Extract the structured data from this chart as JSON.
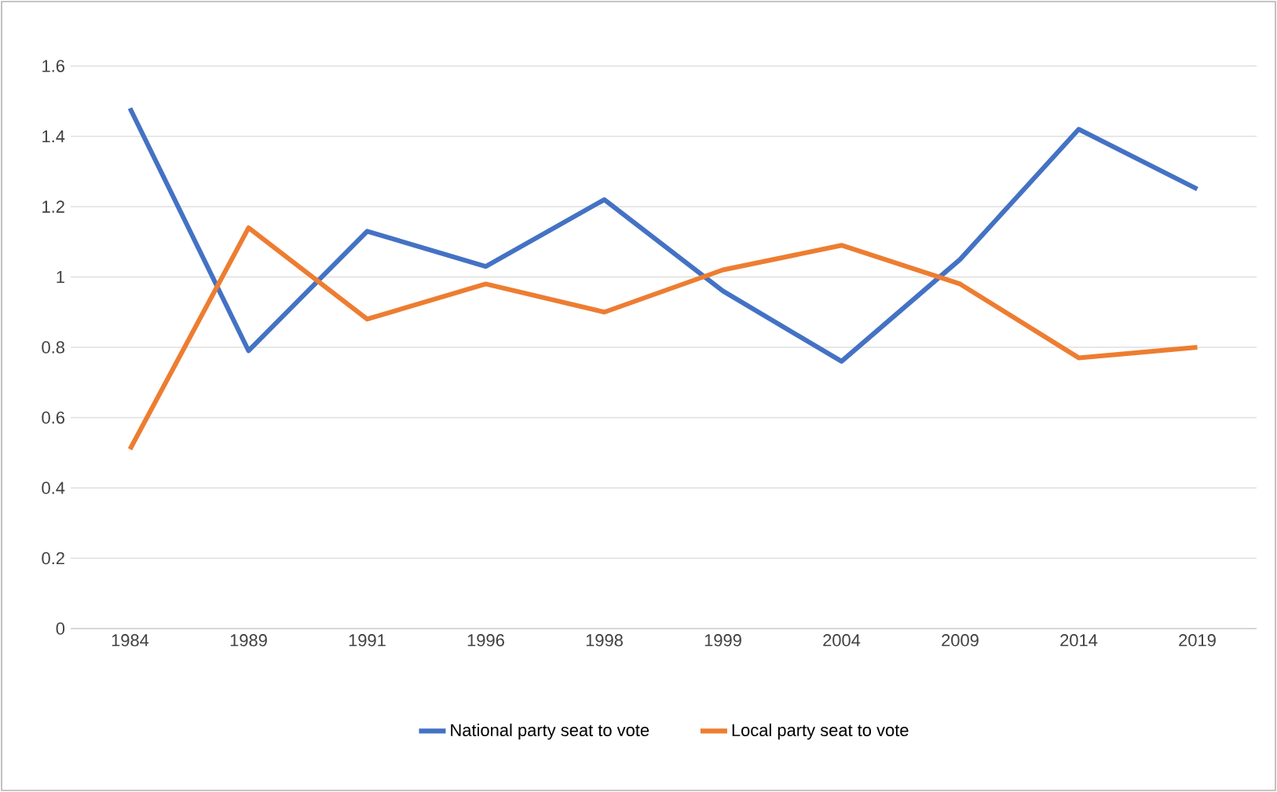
{
  "chart_data": {
    "type": "line",
    "categories": [
      "1984",
      "1989",
      "1991",
      "1996",
      "1998",
      "1999",
      "2004",
      "2009",
      "2014",
      "2019"
    ],
    "series": [
      {
        "name": "National party seat to vote",
        "color": "#4472c4",
        "values": [
          1.48,
          0.79,
          1.13,
          1.03,
          1.22,
          0.96,
          0.76,
          1.05,
          1.42,
          1.25
        ]
      },
      {
        "name": "Local party seat to vote",
        "color": "#ed7d31",
        "values": [
          0.51,
          1.14,
          0.88,
          0.98,
          0.9,
          1.02,
          1.09,
          0.98,
          0.77,
          0.8
        ]
      }
    ],
    "ylim": [
      0,
      1.6
    ],
    "yticks": [
      0,
      0.2,
      0.4,
      0.6,
      0.8,
      1,
      1.2,
      1.4,
      1.6
    ],
    "grid": "y",
    "legend": "bottom",
    "marker": "none",
    "line_style": "solid"
  }
}
